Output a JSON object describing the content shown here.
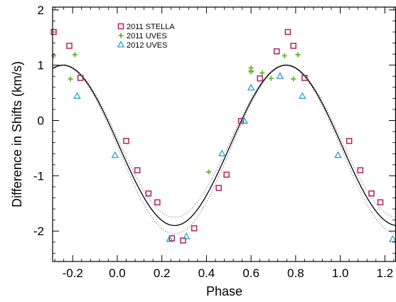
{
  "chart_data": {
    "type": "scatter",
    "title": "",
    "xlabel": "Phase",
    "ylabel": "Difference in Shifts (km/s)",
    "xlim": [
      -0.29,
      1.25
    ],
    "ylim": [
      -2.55,
      2.05
    ],
    "x_ticks": [
      -0.2,
      0.0,
      0.2,
      0.4,
      0.6,
      0.8,
      1.0,
      1.2
    ],
    "x_tick_labels": [
      "-0.2",
      "0.0",
      "0.2",
      "0.4",
      "0.6",
      "0.8",
      "1.0",
      "1.2"
    ],
    "y_ticks": [
      -2,
      -1,
      0,
      1,
      2
    ],
    "y_tick_labels": [
      "-2",
      "-1",
      "0",
      "1",
      "2"
    ],
    "grid": false,
    "legend_position": "top-left",
    "series": [
      {
        "name": "2011 STELLA",
        "marker": "square",
        "color": "#b5215e",
        "points": [
          [
            -0.285,
            1.6
          ],
          [
            -0.215,
            1.35
          ],
          [
            -0.165,
            0.77
          ],
          [
            0.04,
            -0.37
          ],
          [
            0.09,
            -0.9
          ],
          [
            0.14,
            -1.32
          ],
          [
            0.18,
            -1.48
          ],
          [
            0.245,
            -2.13
          ],
          [
            0.295,
            -2.17
          ],
          [
            0.345,
            -1.95
          ],
          [
            0.455,
            -1.22
          ],
          [
            0.49,
            -0.98
          ],
          [
            0.555,
            -0.01
          ],
          [
            0.64,
            0.76
          ],
          [
            0.715,
            1.25
          ],
          [
            0.765,
            1.6
          ],
          [
            0.79,
            1.35
          ],
          [
            0.84,
            0.77
          ],
          [
            1.04,
            -0.37
          ],
          [
            1.09,
            -0.9
          ],
          [
            1.14,
            -1.32
          ],
          [
            1.18,
            -1.48
          ]
        ]
      },
      {
        "name": "2011 UVES",
        "marker": "plus",
        "color": "#6ab52a",
        "points": [
          [
            -0.285,
            1.17
          ],
          [
            -0.21,
            0.75
          ],
          [
            -0.19,
            1.19
          ],
          [
            0.41,
            -0.93
          ],
          [
            0.6,
            0.95
          ],
          [
            0.6,
            0.88
          ],
          [
            0.6,
            0.9
          ],
          [
            0.65,
            0.86
          ],
          [
            0.69,
            0.76
          ],
          [
            0.75,
            1.17
          ],
          [
            0.79,
            0.75
          ],
          [
            0.81,
            1.19
          ]
        ]
      },
      {
        "name": "2012 UVES",
        "marker": "triangle",
        "color": "#2aa3c7",
        "points": [
          [
            -0.18,
            0.44
          ],
          [
            -0.01,
            -0.63
          ],
          [
            0.235,
            -2.15
          ],
          [
            0.31,
            -2.1
          ],
          [
            0.47,
            -0.6
          ],
          [
            0.57,
            -0.01
          ],
          [
            0.6,
            0.59
          ],
          [
            0.73,
            0.8
          ],
          [
            0.83,
            0.44
          ],
          [
            0.99,
            -0.63
          ],
          [
            1.235,
            -2.15
          ]
        ]
      }
    ],
    "model_curves": [
      {
        "style": "solid",
        "color": "#000000",
        "amplitude": 1.45,
        "offset": -0.45,
        "phase_max": 0.757
      },
      {
        "style": "dotted",
        "color": "#555555",
        "amplitude": 1.38,
        "offset": -0.37,
        "phase_max": 0.757
      },
      {
        "style": "dotted",
        "color": "#555555",
        "amplitude": 1.52,
        "offset": -0.53,
        "phase_max": 0.757
      }
    ]
  }
}
